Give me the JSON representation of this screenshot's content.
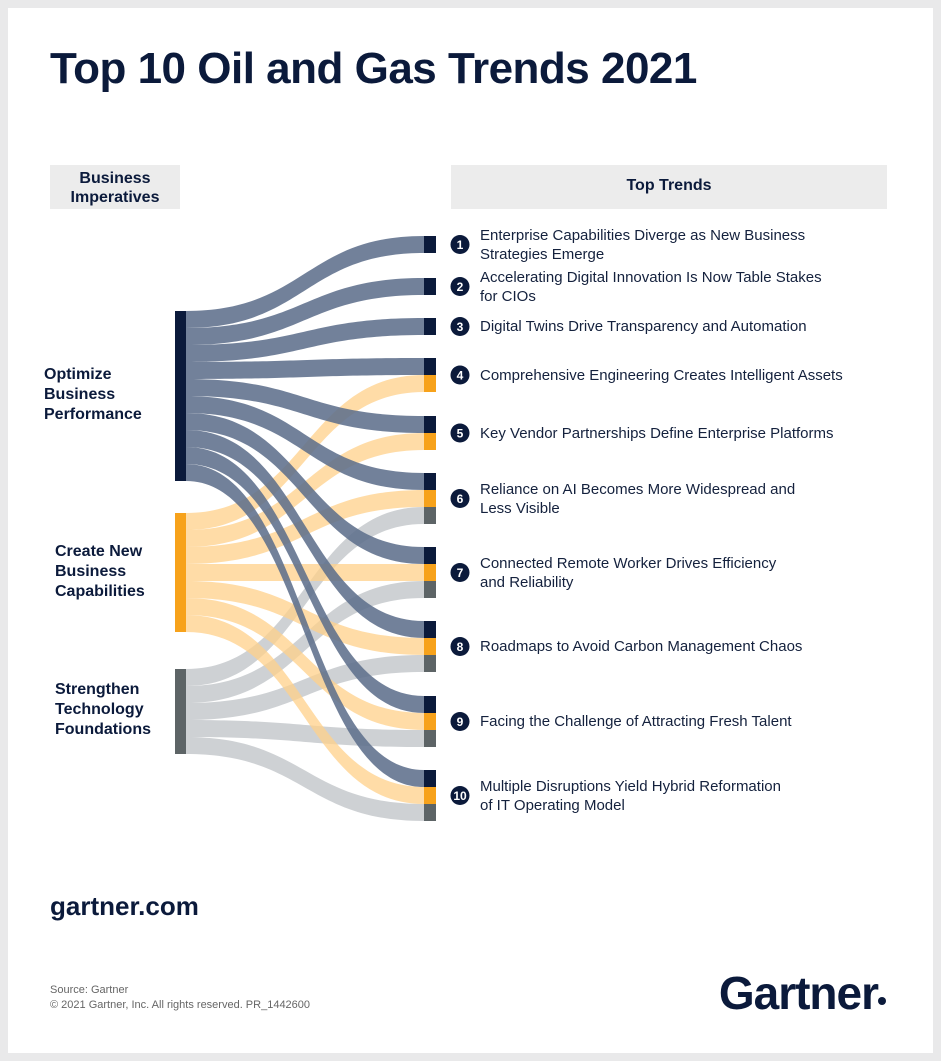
{
  "title": "Top 10 Oil and Gas Trends 2021",
  "headers": {
    "imperatives": "Business Imperatives",
    "trends": "Top Trends"
  },
  "imperatives": [
    "Optimize Business Performance",
    "Create New Business Capabilities",
    "Strengthen Technology Foundations"
  ],
  "trends": [
    {
      "number": 1,
      "lines": [
        "Enterprise Capabilities Diverge as New Business",
        "Strategies Emerge"
      ]
    },
    {
      "number": 2,
      "lines": [
        "Accelerating Digital Innovation Is Now Table Stakes",
        "for CIOs"
      ]
    },
    {
      "number": 3,
      "lines": [
        "Digital Twins Drive Transparency and Automation"
      ]
    },
    {
      "number": 4,
      "lines": [
        "Comprehensive Engineering Creates Intelligent Assets"
      ]
    },
    {
      "number": 5,
      "lines": [
        "Key Vendor Partnerships Define Enterprise Platforms"
      ]
    },
    {
      "number": 6,
      "lines": [
        "Reliance on AI Becomes More Widespread and",
        "Less Visible"
      ]
    },
    {
      "number": 7,
      "lines": [
        "Connected Remote Worker Drives Efficiency",
        "and Reliability"
      ]
    },
    {
      "number": 8,
      "lines": [
        "Roadmaps to Avoid Carbon Management Chaos"
      ]
    },
    {
      "number": 9,
      "lines": [
        "Facing the Challenge of Attracting Fresh Talent"
      ]
    },
    {
      "number": 10,
      "lines": [
        "Multiple Disruptions Yield Hybrid Reformation",
        "of IT Operating Model"
      ]
    }
  ],
  "footer": {
    "site": "gartner.com",
    "source": "Source: Gartner",
    "copyright": "© 2021 Gartner, Inc. All rights reserved. PR_1442600",
    "logo": "Gartner"
  }
}
